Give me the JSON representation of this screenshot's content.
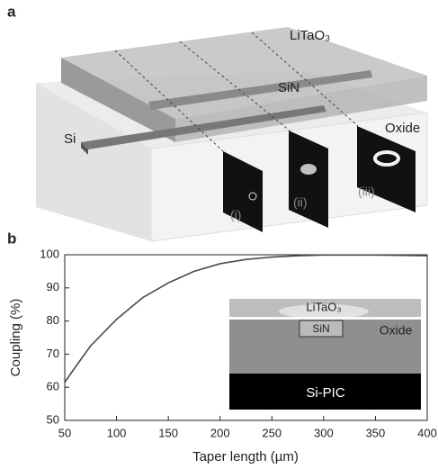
{
  "panel_a": {
    "label": "a",
    "labels": {
      "litao3": "LiTaO₃",
      "sin": "SiN",
      "si": "Si",
      "oxide": "Oxide",
      "mode_i": "(i)",
      "mode_ii": "(ii)",
      "mode_iii": "(iii)"
    }
  },
  "chart_data": {
    "type": "line",
    "panel_label": "b",
    "x_label": "Taper length (µm)",
    "y_label": "Coupling (%)",
    "x": [
      50,
      60,
      75,
      100,
      125,
      150,
      175,
      200,
      225,
      250,
      275,
      300,
      350,
      400
    ],
    "values": [
      61.5,
      66,
      72.5,
      80.5,
      87,
      91.5,
      95,
      97.3,
      98.6,
      99.3,
      99.7,
      99.9,
      99.9,
      99.7
    ],
    "color": "#4a4a4a",
    "xlim": [
      50,
      400
    ],
    "xticks": [
      50,
      100,
      150,
      200,
      250,
      300,
      350,
      400
    ],
    "ylim": [
      50,
      100
    ],
    "yticks": [
      50,
      60,
      70,
      80,
      90,
      100
    ],
    "inset_labels": {
      "litao3": "LiTaO₃",
      "sin": "SiN",
      "oxide": "Oxide",
      "si_pic": "Si-PIC"
    }
  }
}
